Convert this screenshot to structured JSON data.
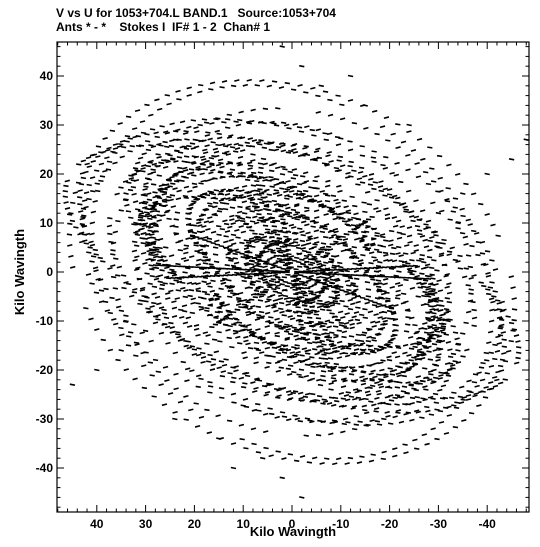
{
  "header": {
    "line1": "V vs U for 1053+704.L BAND.1   Source:1053+704",
    "line2": "Ants * - *    Stokes I  IF# 1 - 2  Chan# 1"
  },
  "chart_data": {
    "type": "scatter",
    "title": "V vs U for 1053+704.L BAND.1   Source:1053+704",
    "subtitle": "Ants * - *    Stokes I  IF# 1 - 2  Chan# 1",
    "xlabel": "Kilo Wavingth",
    "ylabel": "Kilo Wavingth",
    "xlim": [
      50,
      -50
    ],
    "ylim": [
      -48,
      48
    ],
    "x_reversed": true,
    "x_ticks": [
      40,
      30,
      20,
      10,
      0,
      -10,
      -20,
      -30,
      -40
    ],
    "x_tick_labels": [
      "40",
      "30",
      "20",
      "10",
      "0",
      "-10",
      "-20",
      "-30",
      "-40"
    ],
    "y_ticks": [
      40,
      30,
      20,
      10,
      0,
      -10,
      -20,
      -30,
      -40
    ],
    "y_tick_labels": [
      "40",
      "30",
      "20",
      "10",
      "0",
      "-10",
      "-20",
      "-30",
      "-40"
    ],
    "grid": false,
    "legend": "none",
    "marker": "short dash",
    "point_color": "#000000",
    "sample_points": [
      [
        48,
        -27
      ],
      [
        45,
        -23
      ],
      [
        40,
        -20
      ],
      [
        35,
        -16
      ],
      [
        30,
        -12
      ],
      [
        22,
        -8
      ],
      [
        15,
        -5
      ],
      [
        8,
        -2
      ],
      [
        3,
        -1
      ],
      [
        -3,
        1
      ],
      [
        -8,
        2
      ],
      [
        -15,
        5
      ],
      [
        -22,
        8
      ],
      [
        -30,
        12
      ],
      [
        -35,
        16
      ],
      [
        -40,
        20
      ],
      [
        -45,
        23
      ],
      [
        -48,
        27
      ],
      [
        34,
        16
      ],
      [
        28,
        14
      ],
      [
        20,
        8
      ],
      [
        10,
        3
      ],
      [
        -10,
        -3
      ],
      [
        -20,
        -8
      ],
      [
        -28,
        -14
      ],
      [
        -34,
        -16
      ],
      [
        2,
        46
      ],
      [
        -2,
        42
      ],
      [
        -6,
        38
      ],
      [
        -12,
        40
      ],
      [
        -15,
        34
      ],
      [
        -24,
        30
      ],
      [
        -2,
        -46
      ],
      [
        2,
        -42
      ],
      [
        6,
        -38
      ],
      [
        12,
        -40
      ],
      [
        15,
        -34
      ],
      [
        24,
        -30
      ],
      [
        27,
        -2
      ],
      [
        18,
        -2
      ],
      [
        10,
        -1
      ],
      [
        -10,
        1
      ],
      [
        -18,
        2
      ],
      [
        -27,
        2
      ],
      [
        -34,
        10
      ],
      [
        -30,
        5
      ],
      [
        -28,
        -5
      ],
      [
        -32,
        -10
      ],
      [
        34,
        -10
      ],
      [
        30,
        -5
      ],
      [
        28,
        5
      ],
      [
        32,
        10
      ]
    ]
  }
}
